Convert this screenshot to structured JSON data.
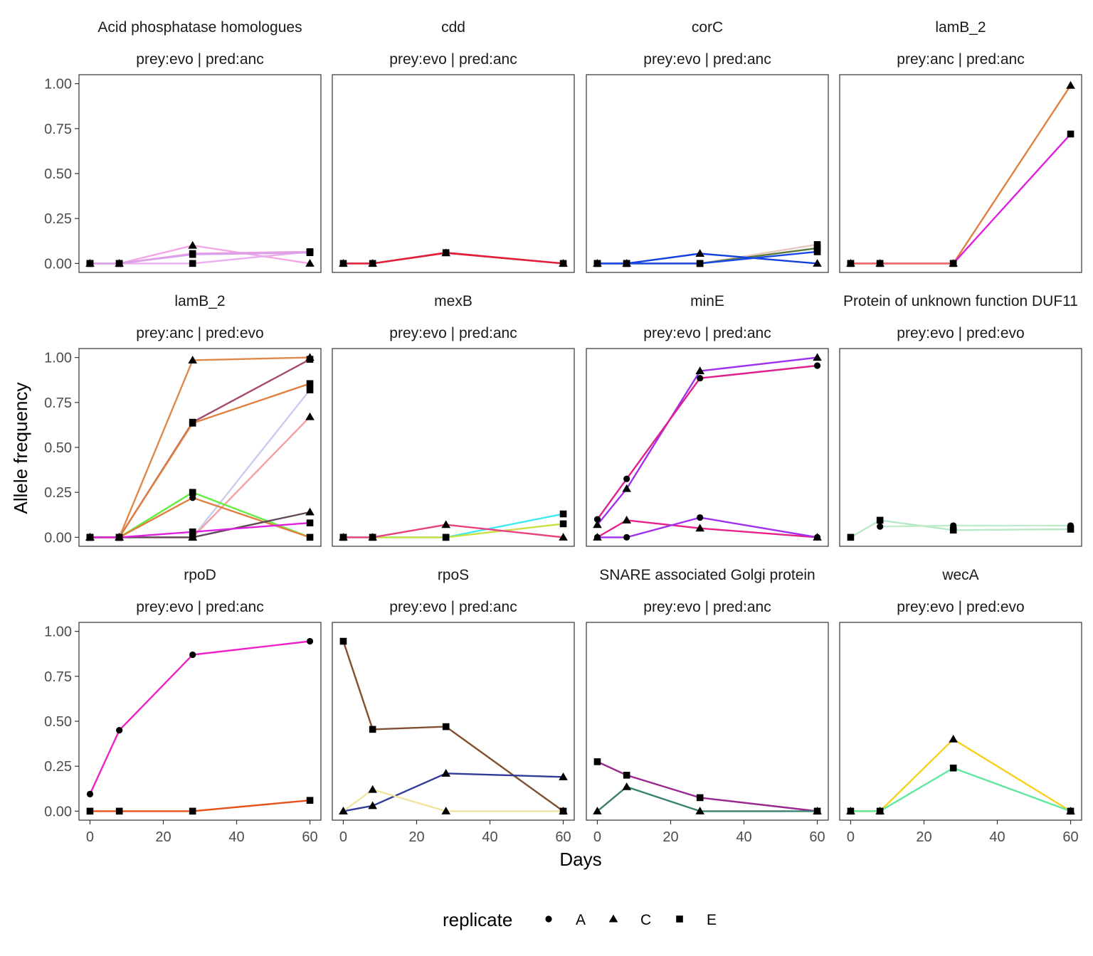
{
  "chart_data": {
    "type": "line",
    "xlabel": "Days",
    "ylabel": "Allele frequency",
    "xlim": [
      -3,
      63
    ],
    "ylim": [
      -0.05,
      1.05
    ],
    "x_ticks": [
      "0",
      "20",
      "40",
      "60"
    ],
    "y_ticks": [
      "0.00",
      "0.25",
      "0.50",
      "0.75",
      "1.00"
    ],
    "grid": false,
    "legend": {
      "title": "replicate",
      "position": "bottom",
      "entries": [
        {
          "label": "A",
          "shape": "circle"
        },
        {
          "label": "C",
          "shape": "triangle"
        },
        {
          "label": "E",
          "shape": "square"
        }
      ]
    },
    "panels": [
      {
        "gene": "Acid phosphatase homologues",
        "condition": "prey:evo | pred:anc",
        "series": [
          {
            "color": "#f5a6e6",
            "replicate": "C",
            "x": [
              0,
              8,
              28,
              60
            ],
            "y": [
              0,
              0,
              0.1,
              0
            ]
          },
          {
            "color": "#f0a0e0",
            "replicate": "E",
            "x": [
              0,
              8,
              28,
              60
            ],
            "y": [
              0,
              0,
              0.055,
              0.065
            ]
          },
          {
            "color": "#ecaeec",
            "replicate": "E",
            "x": [
              0,
              8,
              28,
              60
            ],
            "y": [
              0,
              0,
              0,
              0.065
            ]
          },
          {
            "color": "#d8a0ea",
            "replicate": "E",
            "x": [
              0,
              8,
              28,
              60
            ],
            "y": [
              0,
              0,
              0.05,
              0.06
            ]
          }
        ]
      },
      {
        "gene": "cdd",
        "condition": "prey:evo | pred:anc",
        "series": [
          {
            "color": "#ee1c3c",
            "replicate": "E",
            "x": [
              0,
              8,
              28,
              60
            ],
            "y": [
              0,
              0,
              0.06,
              0
            ]
          },
          {
            "color": "#e0203a",
            "replicate": "C",
            "x": [
              0,
              8,
              28,
              60
            ],
            "y": [
              0,
              0,
              0.058,
              0
            ]
          }
        ]
      },
      {
        "gene": "corC",
        "condition": "prey:evo | pred:anc",
        "series": [
          {
            "color": "#e6c8c0",
            "replicate": "E",
            "x": [
              0,
              8,
              28,
              60
            ],
            "y": [
              0,
              0,
              0,
              0.105
            ]
          },
          {
            "color": "#5a7a3a",
            "replicate": "E",
            "x": [
              0,
              8,
              28,
              60
            ],
            "y": [
              0,
              0,
              0,
              0.085
            ]
          },
          {
            "color": "#1040e0",
            "replicate": "C",
            "x": [
              0,
              8,
              28,
              60
            ],
            "y": [
              0,
              0,
              0.055,
              0
            ]
          },
          {
            "color": "#1848e8",
            "replicate": "E",
            "x": [
              0,
              8,
              28,
              60
            ],
            "y": [
              0,
              0,
              0,
              0.065
            ]
          }
        ]
      },
      {
        "gene": "lamB_2",
        "condition": "prey:anc | pred:anc",
        "series": [
          {
            "color": "#e08040",
            "replicate": "C",
            "x": [
              0,
              8,
              28,
              60
            ],
            "y": [
              0,
              0,
              0,
              0.99
            ]
          },
          {
            "color": "#e020e0",
            "replicate": "E",
            "x": [
              0,
              8,
              28,
              60
            ],
            "y": [
              0,
              0,
              0,
              0.72
            ]
          },
          {
            "color": "#f07060",
            "replicate": "E",
            "x": [
              0,
              8,
              28
            ],
            "y": [
              0,
              0,
              0
            ]
          }
        ]
      },
      {
        "gene": "lamB_2",
        "condition": "prey:anc | pred:evo",
        "series": [
          {
            "color": "#e0884a",
            "replicate": "C",
            "x": [
              0,
              8,
              28,
              60
            ],
            "y": [
              0,
              0,
              0.985,
              1.0
            ]
          },
          {
            "color": "#a84a6a",
            "replicate": "E",
            "x": [
              0,
              8,
              28,
              60
            ],
            "y": [
              0,
              0,
              0.64,
              0.99
            ]
          },
          {
            "color": "#e08040",
            "replicate": "E",
            "x": [
              0,
              8,
              28,
              60
            ],
            "y": [
              0,
              0,
              0.635,
              0.855
            ]
          },
          {
            "color": "#c8ccf0",
            "replicate": "E",
            "x": [
              0,
              8,
              28,
              60
            ],
            "y": [
              0,
              0,
              0,
              0.82
            ]
          },
          {
            "color": "#f4a0a0",
            "replicate": "C",
            "x": [
              0,
              8,
              28,
              60
            ],
            "y": [
              0,
              0,
              0,
              0.67
            ]
          },
          {
            "color": "#60ee40",
            "replicate": "E",
            "x": [
              0,
              8,
              28,
              60
            ],
            "y": [
              0,
              0,
              0.25,
              0
            ]
          },
          {
            "color": "#e08040",
            "replicate": "A",
            "x": [
              0,
              8,
              28,
              60
            ],
            "y": [
              0,
              0,
              0.22,
              0
            ]
          },
          {
            "color": "#604858",
            "replicate": "C",
            "x": [
              0,
              8,
              28,
              60
            ],
            "y": [
              0,
              0,
              0,
              0.14
            ]
          },
          {
            "color": "#e020e0",
            "replicate": "E",
            "x": [
              0,
              8,
              28,
              60
            ],
            "y": [
              0,
              0,
              0.03,
              0.08
            ]
          }
        ]
      },
      {
        "gene": "mexB",
        "condition": "prey:evo | pred:anc",
        "series": [
          {
            "color": "#40e8f0",
            "replicate": "E",
            "x": [
              0,
              8,
              28,
              60
            ],
            "y": [
              0,
              0,
              0,
              0.13
            ]
          },
          {
            "color": "#c8e040",
            "replicate": "E",
            "x": [
              0,
              8,
              28,
              60
            ],
            "y": [
              0,
              0,
              0,
              0.075
            ]
          },
          {
            "color": "#e84080",
            "replicate": "C",
            "x": [
              0,
              8,
              28,
              60
            ],
            "y": [
              0,
              0,
              0.07,
              0
            ]
          }
        ]
      },
      {
        "gene": "minE",
        "condition": "prey:evo | pred:anc",
        "series": [
          {
            "color": "#a030f0",
            "replicate": "C",
            "x": [
              0,
              8,
              28,
              60
            ],
            "y": [
              0.07,
              0.27,
              0.925,
              1.0
            ]
          },
          {
            "color": "#e0208a",
            "replicate": "A",
            "x": [
              0,
              8,
              28,
              60
            ],
            "y": [
              0.1,
              0.325,
              0.885,
              0.955
            ]
          },
          {
            "color": "#e8208a",
            "replicate": "C",
            "x": [
              0,
              8,
              28,
              60
            ],
            "y": [
              0,
              0.095,
              0.05,
              0
            ]
          },
          {
            "color": "#a030f0",
            "replicate": "A",
            "x": [
              0,
              8,
              28,
              60
            ],
            "y": [
              0,
              0,
              0.11,
              0
            ]
          }
        ]
      },
      {
        "gene": "Protein of unknown function DUF11",
        "condition": "prey:evo | pred:evo",
        "series": [
          {
            "color": "#b8e8c8",
            "replicate": "E",
            "x": [
              0,
              8,
              28,
              60
            ],
            "y": [
              0,
              0.095,
              0.04,
              0.045
            ]
          },
          {
            "color": "#c0eccc",
            "replicate": "A",
            "x": [
              8,
              28,
              60
            ],
            "y": [
              0.06,
              0.065,
              0.065
            ]
          }
        ]
      },
      {
        "gene": "rpoD",
        "condition": "prey:evo | pred:anc",
        "series": [
          {
            "color": "#f020c8",
            "replicate": "A",
            "x": [
              0,
              8,
              28,
              60
            ],
            "y": [
              0.095,
              0.45,
              0.87,
              0.945
            ]
          },
          {
            "color": "#e8501a",
            "replicate": "E",
            "x": [
              0,
              8,
              28,
              60
            ],
            "y": [
              0,
              0,
              0,
              0.06
            ]
          }
        ]
      },
      {
        "gene": "rpoS",
        "condition": "prey:evo | pred:anc",
        "series": [
          {
            "color": "#805030",
            "replicate": "E",
            "x": [
              0,
              8,
              28,
              60
            ],
            "y": [
              0.945,
              0.455,
              0.47,
              0
            ]
          },
          {
            "color": "#303a98",
            "replicate": "C",
            "x": [
              0,
              8,
              28,
              60
            ],
            "y": [
              0,
              0.03,
              0.21,
              0.19
            ]
          },
          {
            "color": "#f0e4a0",
            "replicate": "C",
            "x": [
              0,
              8,
              28,
              60
            ],
            "y": [
              0,
              0.12,
              0,
              0
            ]
          }
        ]
      },
      {
        "gene": "SNARE associated Golgi protein",
        "condition": "prey:evo | pred:anc",
        "series": [
          {
            "color": "#9a2890",
            "replicate": "E",
            "x": [
              0,
              8,
              28,
              60
            ],
            "y": [
              0.275,
              0.2,
              0.075,
              0
            ]
          },
          {
            "color": "#3a8070",
            "replicate": "C",
            "x": [
              0,
              8,
              28,
              60
            ],
            "y": [
              0,
              0.135,
              0,
              0
            ]
          }
        ]
      },
      {
        "gene": "wecA",
        "condition": "prey:evo | pred:evo",
        "series": [
          {
            "color": "#f8d020",
            "replicate": "C",
            "x": [
              0,
              8,
              28,
              60
            ],
            "y": [
              0,
              0,
              0.4,
              0
            ]
          },
          {
            "color": "#60e8a0",
            "replicate": "E",
            "x": [
              0,
              8,
              28,
              60
            ],
            "y": [
              0,
              0,
              0.24,
              0
            ]
          }
        ]
      }
    ]
  }
}
